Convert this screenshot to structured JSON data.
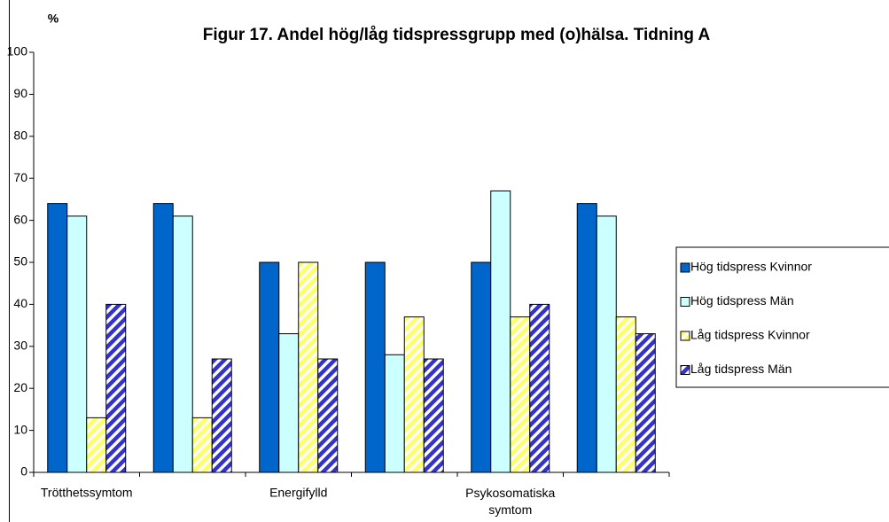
{
  "chart_data": {
    "type": "bar",
    "title": "Figur 17. Andel hög/låg tidspressgrupp med (o)hälsa. Tidning A",
    "y_label": "%",
    "categories": [
      "Trötthetssymtom",
      null,
      "Energifylld",
      null,
      "Psykosomatiska\nsymtom",
      null
    ],
    "series": [
      {
        "name": "Hög tidspress Kvinnor",
        "color": "#0066cc",
        "pattern": "solid",
        "values": [
          64,
          64,
          50,
          50,
          50,
          64
        ]
      },
      {
        "name": "Hög tidspress Män",
        "color": "#ccffff",
        "pattern": "solid",
        "values": [
          61,
          61,
          33,
          28,
          67,
          61
        ]
      },
      {
        "name": "Låg tidspress Kvinnor",
        "color": "#ffff66",
        "pattern": "diagonal",
        "values": [
          13,
          13,
          50,
          37,
          37,
          37
        ]
      },
      {
        "name": "Låg tidspress Män",
        "color": "#3333cc",
        "pattern": "diagonal",
        "values": [
          40,
          27,
          27,
          27,
          40,
          33
        ]
      }
    ],
    "ylim": [
      0,
      100
    ],
    "yticks": [
      0,
      10,
      20,
      30,
      40,
      50,
      60,
      70,
      80,
      90,
      100
    ],
    "grid": false,
    "legend": "right"
  }
}
